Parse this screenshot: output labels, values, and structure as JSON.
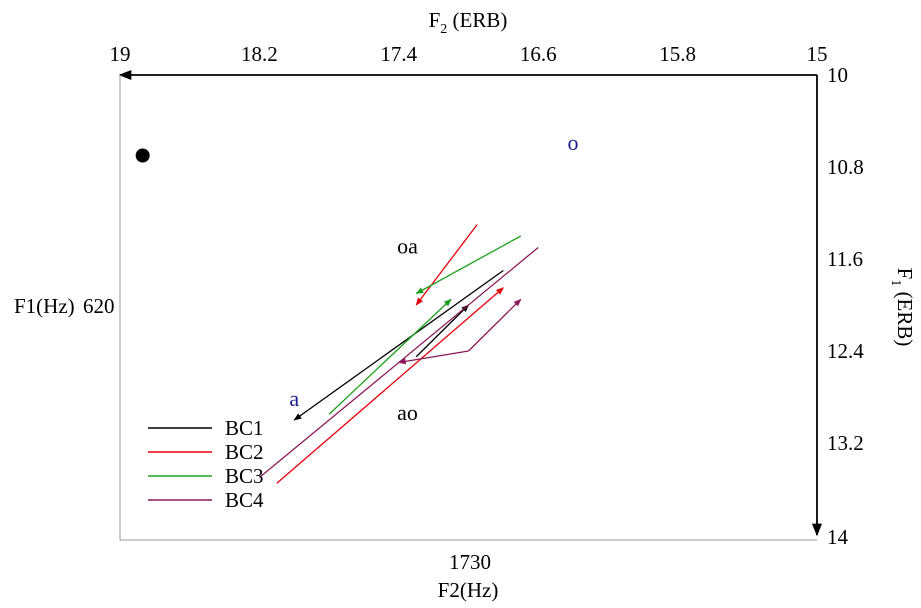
{
  "chart_data": {
    "type": "line",
    "top_axis": {
      "label_main": "F",
      "label_sub": "2",
      "label_unit": " (ERB)",
      "range": [
        19,
        15
      ],
      "ticks": [
        "19",
        "18.2",
        "17.4",
        "16.6",
        "15.8",
        "15"
      ],
      "tick_values": [
        19,
        18.2,
        17.4,
        16.6,
        15.8,
        15
      ]
    },
    "right_axis": {
      "label_main": "F",
      "label_sub": "1",
      "label_unit": " (ERB)",
      "range": [
        10,
        14
      ],
      "ticks": [
        "10",
        "10.8",
        "11.6",
        "12.4",
        "13.2",
        "14"
      ],
      "tick_values": [
        10,
        10.8,
        11.6,
        12.4,
        13.2,
        14
      ]
    },
    "bottom_axis": {
      "label": "F2(Hz)",
      "tick": "1730",
      "tick_pos": 17.7
    },
    "left_axis": {
      "label": "F1(Hz)",
      "tick": "620",
      "tick_pos": 11.95
    },
    "vowel_labels": [
      {
        "text": "o",
        "x": 16.4,
        "y": 10.65,
        "color": "#1a1a8c"
      },
      {
        "text": "a",
        "x": 18.0,
        "y": 12.88,
        "color": "#1a1a8c"
      },
      {
        "text": "oa",
        "x": 17.35,
        "y": 11.55,
        "color": "#000000"
      },
      {
        "text": "ao",
        "x": 17.35,
        "y": 13.0,
        "color": "#000000"
      }
    ],
    "marker": {
      "x": 18.87,
      "y": 10.7
    },
    "series": [
      {
        "name": "BC1",
        "color": "#000000",
        "segments": [
          {
            "from": [
              18.0,
              13.0
            ],
            "to": [
              16.8,
              11.7
            ],
            "arrow_at": [
              17.3,
              12.45
            ]
          },
          {
            "from": [
              17.0,
              12.0
            ],
            "to": [
              17.3,
              12.45
            ],
            "arrow_at": [
              17.0,
              12.0
            ]
          }
        ]
      },
      {
        "name": "BC2",
        "color": "#e8000b",
        "segments": [
          {
            "from": [
              16.95,
              11.3
            ],
            "to": [
              17.3,
              12.0
            ],
            "arrow_at": [
              17.3,
              12.0
            ]
          },
          {
            "from": [
              18.1,
              13.55
            ],
            "to": [
              16.8,
              11.85
            ],
            "arrow_at": [
              16.8,
              11.85
            ]
          }
        ]
      },
      {
        "name": "BC3",
        "color": "#1ea01e",
        "segments": [
          {
            "from": [
              16.7,
              11.4
            ],
            "to": [
              17.3,
              11.9
            ],
            "arrow_at": [
              17.3,
              11.9
            ]
          },
          {
            "from": [
              17.8,
              12.95
            ],
            "to": [
              17.1,
              11.95
            ],
            "arrow_at": [
              17.1,
              11.95
            ]
          }
        ]
      },
      {
        "name": "BC4",
        "color": "#8b1a5a",
        "segments": [
          {
            "from": [
              18.2,
              13.5
            ],
            "to": [
              16.6,
              11.5
            ]
          },
          {
            "from": [
              17.0,
              12.4
            ],
            "to": [
              16.7,
              11.95
            ],
            "arrow_at": [
              16.7,
              11.95
            ]
          },
          {
            "from": [
              17.0,
              12.4
            ],
            "to": [
              17.4,
              12.5
            ],
            "arrow_at": [
              17.4,
              12.5
            ]
          }
        ]
      }
    ],
    "legend": {
      "position": "bottom-left",
      "entries": [
        "BC1",
        "BC2",
        "BC3",
        "BC4"
      ]
    },
    "grid": false
  }
}
